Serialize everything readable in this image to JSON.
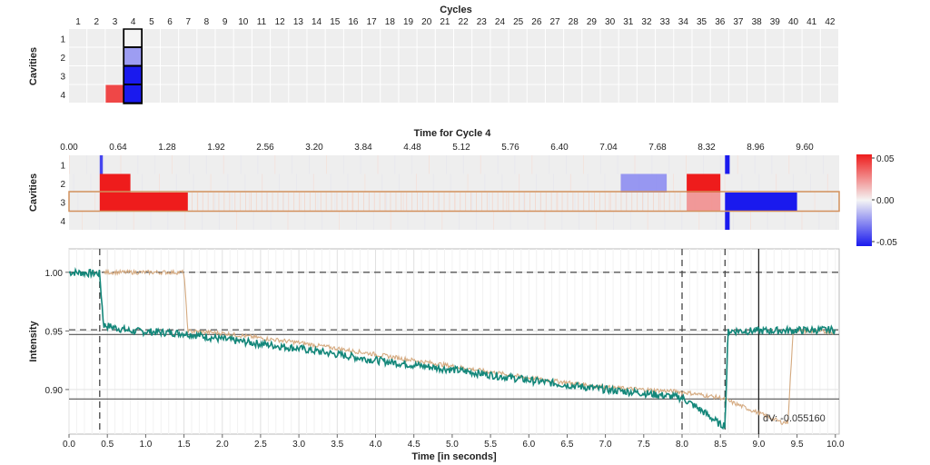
{
  "colors": {
    "hot": "#ee1c1c",
    "cold": "#1a1aee",
    "neutral": "#eeeeee",
    "teal": "#14877a",
    "tan": "#d5aa80",
    "highlight": "#d2905c"
  },
  "heatmap_top": {
    "title": "Cycles",
    "ylabel": "Cavities",
    "cycles": [
      1,
      2,
      3,
      4,
      5,
      6,
      7,
      8,
      9,
      10,
      11,
      12,
      13,
      14,
      15,
      16,
      17,
      18,
      19,
      20,
      21,
      22,
      23,
      24,
      25,
      26,
      27,
      28,
      29,
      30,
      31,
      32,
      33,
      34,
      35,
      36,
      37,
      38,
      39,
      40,
      41,
      42
    ],
    "cavities": [
      "1",
      "2",
      "3",
      "4"
    ],
    "cells": [
      {
        "cycle": 3,
        "cavity": "4",
        "value": 0.04
      },
      {
        "cycle": 4,
        "cavity": "1",
        "value": 0.0
      },
      {
        "cycle": 4,
        "cavity": "2",
        "value": -0.02
      },
      {
        "cycle": 4,
        "cavity": "3",
        "value": -0.055
      },
      {
        "cycle": 4,
        "cavity": "4",
        "value": -0.055
      }
    ],
    "selected_cycle": 4
  },
  "heatmap_mid": {
    "title": "Time for Cycle 4",
    "ylabel": "Cavities",
    "ticks": [
      "0.00",
      "0.64",
      "1.28",
      "1.92",
      "2.56",
      "3.20",
      "3.84",
      "4.48",
      "5.12",
      "5.76",
      "6.40",
      "7.04",
      "7.68",
      "8.32",
      "8.96",
      "9.60"
    ],
    "cavities": [
      "1",
      "2",
      "3",
      "4"
    ],
    "selected_cavity": "3",
    "bands": [
      {
        "cavity": "1",
        "t0": 0.4,
        "t1": 0.44,
        "value": -0.04
      },
      {
        "cavity": "2",
        "t0": 0.4,
        "t1": 0.8,
        "value": 0.05
      },
      {
        "cavity": "2",
        "t0": 7.2,
        "t1": 7.8,
        "value": -0.025
      },
      {
        "cavity": "2",
        "t0": 8.06,
        "t1": 8.5,
        "value": 0.05
      },
      {
        "cavity": "3",
        "t0": 0.4,
        "t1": 1.55,
        "value": 0.05
      },
      {
        "cavity": "3",
        "t0": 8.06,
        "t1": 8.5,
        "value": 0.025
      },
      {
        "cavity": "3",
        "t0": 8.56,
        "t1": 9.5,
        "value": -0.05
      },
      {
        "cavity": "1",
        "t0": 8.56,
        "t1": 8.62,
        "value": -0.05
      },
      {
        "cavity": "4",
        "t0": 8.56,
        "t1": 8.62,
        "value": -0.05
      }
    ]
  },
  "colorbar": {
    "ticks": [
      "0.05",
      "0.00",
      "-0.05"
    ],
    "max": 0.05,
    "min": -0.05
  },
  "chart_data": {
    "type": "line",
    "xlabel": "Time [in seconds]",
    "ylabel": "Intensity",
    "xlim": [
      0,
      10.05
    ],
    "ylim": [
      0.862,
      1.02
    ],
    "xticks": [
      "0.0",
      "0.5",
      "1.0",
      "1.5",
      "2.0",
      "2.5",
      "3.0",
      "3.5",
      "4.0",
      "4.5",
      "5.0",
      "5.5",
      "6.0",
      "6.5",
      "7.0",
      "7.5",
      "8.0",
      "8.5",
      "9.0",
      "9.5",
      "10.0"
    ],
    "yticks": [
      "0.90",
      "0.95",
      "1.00"
    ],
    "series": [
      {
        "color": "teal",
        "points": [
          [
            0,
            1.0
          ],
          [
            0.4,
            0.999
          ],
          [
            0.45,
            0.955
          ],
          [
            0.8,
            0.95
          ],
          [
            1.5,
            0.948
          ],
          [
            2.0,
            0.943
          ],
          [
            3.0,
            0.935
          ],
          [
            4.0,
            0.925
          ],
          [
            5.0,
            0.917
          ],
          [
            6.0,
            0.908
          ],
          [
            7.0,
            0.9
          ],
          [
            7.5,
            0.897
          ],
          [
            8.0,
            0.893
          ],
          [
            8.3,
            0.88
          ],
          [
            8.5,
            0.87
          ],
          [
            8.56,
            0.87
          ],
          [
            8.6,
            0.95
          ],
          [
            9.0,
            0.95
          ],
          [
            10.0,
            0.951
          ]
        ]
      },
      {
        "color": "tan",
        "points": [
          [
            0.45,
            1.0
          ],
          [
            1.5,
            1.0
          ],
          [
            1.55,
            0.95
          ],
          [
            2.0,
            0.948
          ],
          [
            3.0,
            0.94
          ],
          [
            4.0,
            0.93
          ],
          [
            5.0,
            0.92
          ],
          [
            6.0,
            0.91
          ],
          [
            7.0,
            0.902
          ],
          [
            8.0,
            0.898
          ],
          [
            8.5,
            0.893
          ],
          [
            9.0,
            0.88
          ],
          [
            9.3,
            0.872
          ],
          [
            9.38,
            0.872
          ],
          [
            9.45,
            0.95
          ],
          [
            10.0,
            0.949
          ]
        ]
      }
    ],
    "hlines_dashed": [
      1.0,
      0.951
    ],
    "hlines_solid": [
      0.947,
      0.892
    ],
    "vlines_dashed": [
      0.4,
      8.0,
      8.56
    ],
    "vlines_solid": [
      9.0
    ],
    "annotation": "dV: -0.055160"
  }
}
